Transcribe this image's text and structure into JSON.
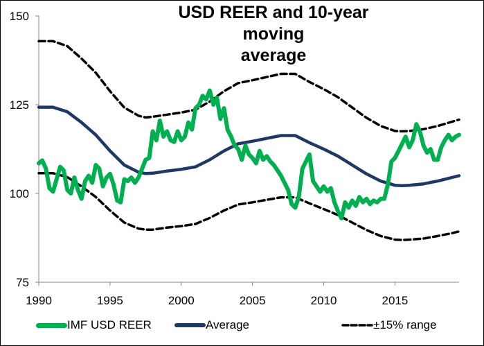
{
  "chart_data": {
    "type": "line",
    "title": "USD REER  and 10-year moving average",
    "title_lines": [
      "USD REER  and 10-year moving",
      "average"
    ],
    "xlabel": "",
    "ylabel": "",
    "xlim": [
      1990,
      2019.5
    ],
    "ylim": [
      75,
      150
    ],
    "x_ticks": [
      1990,
      1995,
      2000,
      2005,
      2010,
      2015
    ],
    "x_tick_labels": [
      "1990",
      "1995",
      "2000",
      "2005",
      "2010",
      "2015"
    ],
    "y_ticks": [
      75,
      100,
      125,
      150
    ],
    "y_tick_labels": [
      "75",
      "100",
      "125",
      "150"
    ],
    "grid": false,
    "legend_position": "bottom",
    "series": [
      {
        "name": "IMF USD REER",
        "color": "#00B050",
        "style": "solid-thick",
        "x": [
          1990.0,
          1990.25,
          1990.5,
          1990.75,
          1991.0,
          1991.25,
          1991.5,
          1991.75,
          1992.0,
          1992.25,
          1992.5,
          1992.75,
          1993.0,
          1993.25,
          1993.5,
          1993.75,
          1994.0,
          1994.25,
          1994.5,
          1994.75,
          1995.0,
          1995.25,
          1995.5,
          1995.75,
          1996.0,
          1996.25,
          1996.5,
          1996.75,
          1997.0,
          1997.25,
          1997.5,
          1997.75,
          1998.0,
          1998.25,
          1998.5,
          1998.75,
          1999.0,
          1999.25,
          1999.5,
          1999.75,
          2000.0,
          2000.25,
          2000.5,
          2000.75,
          2001.0,
          2001.25,
          2001.5,
          2001.75,
          2002.0,
          2002.25,
          2002.5,
          2002.75,
          2003.0,
          2003.25,
          2003.5,
          2003.75,
          2004.0,
          2004.25,
          2004.5,
          2004.75,
          2005.0,
          2005.25,
          2005.5,
          2005.75,
          2006.0,
          2006.25,
          2006.5,
          2006.75,
          2007.0,
          2007.25,
          2007.5,
          2007.75,
          2008.0,
          2008.25,
          2008.5,
          2008.75,
          2009.0,
          2009.25,
          2009.5,
          2009.75,
          2010.0,
          2010.25,
          2010.5,
          2010.75,
          2011.0,
          2011.25,
          2011.5,
          2011.75,
          2012.0,
          2012.25,
          2012.5,
          2012.75,
          2013.0,
          2013.25,
          2013.5,
          2013.75,
          2014.0,
          2014.25,
          2014.5,
          2014.75,
          2015.0,
          2015.25,
          2015.5,
          2015.75,
          2016.0,
          2016.25,
          2016.5,
          2016.75,
          2017.0,
          2017.25,
          2017.5,
          2017.75,
          2018.0,
          2018.25,
          2018.5,
          2018.75,
          2019.0,
          2019.25,
          2019.5
        ],
        "values": [
          108.5,
          109.3,
          107.0,
          101.5,
          100.5,
          104.0,
          107.5,
          106.5,
          101.0,
          100.0,
          104.5,
          101.0,
          98.5,
          103.5,
          105.0,
          103.0,
          108.0,
          107.0,
          102.0,
          104.5,
          105.5,
          102.5,
          98.0,
          97.5,
          104.0,
          103.5,
          104.5,
          103.0,
          104.5,
          107.0,
          109.5,
          110.0,
          117.5,
          115.0,
          120.5,
          116.0,
          117.5,
          115.0,
          114.5,
          117.5,
          115.0,
          116.0,
          120.0,
          118.0,
          124.0,
          125.0,
          127.5,
          126.5,
          129.0,
          125.0,
          127.0,
          121.0,
          124.0,
          118.0,
          116.0,
          113.5,
          112.5,
          109.5,
          113.5,
          111.0,
          110.0,
          108.5,
          112.0,
          109.5,
          110.5,
          109.0,
          108.0,
          106.5,
          105.0,
          103.0,
          101.0,
          97.0,
          96.0,
          99.0,
          107.0,
          109.0,
          111.0,
          103.5,
          102.0,
          100.5,
          102.0,
          100.5,
          101.5,
          97.5,
          95.0,
          93.0,
          97.5,
          96.0,
          98.0,
          96.5,
          99.0,
          97.5,
          98.5,
          97.0,
          98.0,
          97.5,
          98.5,
          98.5,
          102.5,
          109.0,
          110.0,
          112.0,
          114.0,
          116.0,
          113.0,
          115.0,
          119.5,
          117.5,
          113.5,
          111.5,
          112.5,
          109.5,
          109.5,
          113.0,
          115.0,
          116.5,
          115.0,
          116.0,
          116.5
        ]
      },
      {
        "name": "Average",
        "color": "#1F3864",
        "style": "solid-thick",
        "x": [
          1990,
          1991,
          1992,
          1993,
          1994,
          1995,
          1996,
          1997,
          1997.5,
          1998,
          1999,
          2000,
          2001,
          2002,
          2003,
          2004,
          2005,
          2006,
          2007,
          2008,
          2009,
          2010,
          2011,
          2012,
          2013,
          2014,
          2015,
          2015.5,
          2016,
          2017,
          2018,
          2019,
          2019.5
        ],
        "values": [
          124.3,
          124.3,
          123.0,
          120.0,
          116.5,
          112.0,
          108.0,
          106.0,
          105.6,
          105.7,
          106.3,
          106.8,
          107.5,
          109.5,
          112.0,
          114.0,
          114.7,
          115.5,
          116.3,
          116.3,
          114.3,
          112.5,
          110.5,
          108.0,
          105.5,
          103.5,
          102.3,
          102.2,
          102.3,
          102.7,
          103.5,
          104.5,
          105.0
        ]
      },
      {
        "name": "±15% range",
        "color": "#000000",
        "style": "dashed",
        "derived_from": "Average ±15%",
        "x": [
          1990,
          1991,
          1992,
          1993,
          1994,
          1995,
          1996,
          1997,
          1997.5,
          1998,
          1999,
          2000,
          2001,
          2002,
          2003,
          2004,
          2005,
          2006,
          2007,
          2008,
          2009,
          2010,
          2011,
          2012,
          2013,
          2014,
          2015,
          2015.5,
          2016,
          2017,
          2018,
          2019,
          2019.5
        ],
        "upper": [
          142.9,
          142.9,
          141.5,
          138.0,
          134.0,
          128.8,
          124.2,
          121.9,
          121.4,
          121.6,
          122.2,
          122.8,
          123.6,
          125.9,
          128.8,
          131.1,
          131.9,
          132.8,
          133.7,
          133.7,
          131.4,
          129.4,
          127.1,
          124.2,
          121.3,
          119.0,
          117.6,
          117.5,
          117.6,
          118.1,
          119.0,
          120.2,
          120.8
        ],
        "lower": [
          105.7,
          105.7,
          104.6,
          102.0,
          99.0,
          95.2,
          91.8,
          90.1,
          89.8,
          89.8,
          90.4,
          90.8,
          91.4,
          93.1,
          95.2,
          96.9,
          97.5,
          98.2,
          98.9,
          98.9,
          97.2,
          95.6,
          93.9,
          91.8,
          89.7,
          88.0,
          87.0,
          86.9,
          87.0,
          87.3,
          88.0,
          88.8,
          89.3
        ]
      }
    ]
  },
  "legend": {
    "items": [
      {
        "label": "IMF USD REER"
      },
      {
        "label": "Average"
      },
      {
        "label": "±15% range"
      }
    ]
  }
}
